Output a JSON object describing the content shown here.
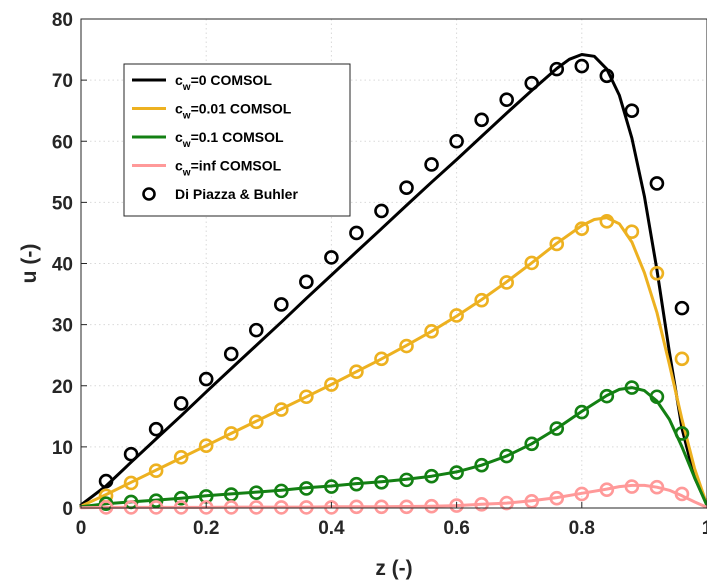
{
  "chart_data": {
    "type": "line",
    "title": "",
    "xlabel": "z (-)",
    "ylabel": "u (-)",
    "xlim": [
      0,
      1
    ],
    "ylim": [
      0,
      80
    ],
    "xticks": [
      0,
      0.2,
      0.4,
      0.6,
      0.8,
      1
    ],
    "xtick_labels": [
      "0",
      "0.2",
      "0.4",
      "0.6",
      "0.8",
      "1"
    ],
    "yticks": [
      0,
      10,
      20,
      30,
      40,
      50,
      60,
      70,
      80
    ],
    "ytick_labels": [
      "0",
      "10",
      "20",
      "30",
      "40",
      "50",
      "60",
      "70",
      "80"
    ],
    "grid": true,
    "legend_position": "top-left",
    "series": [
      {
        "name": "c_w=0 COMSOL",
        "label_main": "c",
        "label_sub": "w",
        "label_rest": "=0 COMSOL",
        "kind": "line",
        "color": "#000000",
        "x": [
          0,
          0.04,
          0.08,
          0.12,
          0.16,
          0.2,
          0.24,
          0.28,
          0.32,
          0.36,
          0.4,
          0.44,
          0.48,
          0.52,
          0.56,
          0.6,
          0.64,
          0.68,
          0.72,
          0.76,
          0.78,
          0.8,
          0.82,
          0.84,
          0.86,
          0.88,
          0.9,
          0.92,
          0.94,
          0.96,
          0.98,
          1.0
        ],
        "y": [
          0.5,
          3.6,
          7.5,
          11.3,
          15.1,
          19.0,
          22.8,
          26.6,
          30.4,
          34.3,
          38.1,
          41.9,
          45.7,
          49.5,
          53.3,
          57.0,
          60.8,
          64.6,
          68.3,
          71.9,
          73.4,
          74.2,
          73.9,
          71.8,
          67.5,
          60.5,
          51.0,
          39.0,
          25.5,
          13.0,
          5.0,
          0.5
        ]
      },
      {
        "name": "c_w=0.01 COMSOL",
        "label_main": "c",
        "label_sub": "w",
        "label_rest": "=0.01 COMSOL",
        "kind": "line",
        "color": "#edb120",
        "x": [
          0,
          0.04,
          0.08,
          0.12,
          0.16,
          0.2,
          0.24,
          0.28,
          0.32,
          0.36,
          0.4,
          0.44,
          0.48,
          0.52,
          0.56,
          0.6,
          0.64,
          0.68,
          0.72,
          0.76,
          0.8,
          0.82,
          0.84,
          0.86,
          0.88,
          0.9,
          0.92,
          0.94,
          0.96,
          0.98,
          1.0
        ],
        "y": [
          0.3,
          2.2,
          4.2,
          6.2,
          8.2,
          10.2,
          12.2,
          14.2,
          16.2,
          18.2,
          20.2,
          22.3,
          24.4,
          26.6,
          28.9,
          31.4,
          34.1,
          37.0,
          40.1,
          43.3,
          46.2,
          47.2,
          47.5,
          46.5,
          43.5,
          38.5,
          32.0,
          23.5,
          14.5,
          6.5,
          0.5
        ]
      },
      {
        "name": "c_w=0.1 COMSOL",
        "label_main": "c",
        "label_sub": "w",
        "label_rest": "=0.1 COMSOL",
        "kind": "line",
        "color": "#138013",
        "x": [
          0,
          0.04,
          0.08,
          0.12,
          0.16,
          0.2,
          0.24,
          0.28,
          0.32,
          0.36,
          0.4,
          0.44,
          0.48,
          0.52,
          0.56,
          0.6,
          0.64,
          0.68,
          0.72,
          0.76,
          0.8,
          0.84,
          0.86,
          0.88,
          0.9,
          0.92,
          0.94,
          0.96,
          0.98,
          1.0
        ],
        "y": [
          0.2,
          0.7,
          1.0,
          1.3,
          1.6,
          2.0,
          2.3,
          2.6,
          2.9,
          3.3,
          3.6,
          4.0,
          4.3,
          4.7,
          5.2,
          5.9,
          7.0,
          8.5,
          10.5,
          13.0,
          15.8,
          18.4,
          19.4,
          19.7,
          19.2,
          17.5,
          14.5,
          10.0,
          5.0,
          0.4
        ]
      },
      {
        "name": "c_w=inf COMSOL",
        "label_main": "c",
        "label_sub": "w",
        "label_rest": "=inf COMSOL",
        "kind": "line",
        "color": "#ff9999",
        "x": [
          0,
          0.04,
          0.08,
          0.12,
          0.16,
          0.2,
          0.24,
          0.28,
          0.32,
          0.36,
          0.4,
          0.44,
          0.48,
          0.52,
          0.56,
          0.6,
          0.64,
          0.68,
          0.72,
          0.76,
          0.8,
          0.84,
          0.86,
          0.88,
          0.9,
          0.92,
          0.94,
          0.96,
          0.98,
          1.0
        ],
        "y": [
          0.05,
          0.1,
          0.1,
          0.1,
          0.1,
          0.1,
          0.15,
          0.15,
          0.15,
          0.15,
          0.2,
          0.2,
          0.2,
          0.25,
          0.3,
          0.4,
          0.6,
          0.8,
          1.2,
          1.7,
          2.4,
          3.1,
          3.5,
          3.7,
          3.7,
          3.4,
          2.9,
          2.0,
          1.0,
          0.1
        ]
      },
      {
        "name": "Di Piazza & Buhler",
        "label_main": "Di Piazza & Buhler",
        "label_sub": "",
        "label_rest": "",
        "kind": "markers-multi",
        "color": "#000000",
        "groups": [
          {
            "color": "#000000",
            "x": [
              0.04,
              0.08,
              0.12,
              0.16,
              0.2,
              0.24,
              0.28,
              0.32,
              0.36,
              0.4,
              0.44,
              0.48,
              0.52,
              0.56,
              0.6,
              0.64,
              0.68,
              0.72,
              0.76,
              0.8,
              0.84,
              0.88,
              0.92,
              0.96
            ],
            "y": [
              4.4,
              8.8,
              12.9,
              17.1,
              21.1,
              25.2,
              29.1,
              33.3,
              37.0,
              41.0,
              45.0,
              48.6,
              52.4,
              56.2,
              60.0,
              63.5,
              66.8,
              69.5,
              71.8,
              72.3,
              70.7,
              65.0,
              53.1,
              32.7
            ]
          },
          {
            "color": "#edb120",
            "x": [
              0.04,
              0.08,
              0.12,
              0.16,
              0.2,
              0.24,
              0.28,
              0.32,
              0.36,
              0.4,
              0.44,
              0.48,
              0.52,
              0.56,
              0.6,
              0.64,
              0.68,
              0.72,
              0.76,
              0.8,
              0.84,
              0.88,
              0.92,
              0.96
            ],
            "y": [
              2.0,
              4.1,
              6.1,
              8.3,
              10.2,
              12.2,
              14.1,
              16.1,
              18.2,
              20.2,
              22.3,
              24.4,
              26.5,
              28.9,
              31.5,
              34.0,
              36.9,
              40.1,
              43.2,
              45.7,
              46.9,
              45.2,
              38.4,
              24.4
            ]
          },
          {
            "color": "#138013",
            "x": [
              0.04,
              0.08,
              0.12,
              0.16,
              0.2,
              0.24,
              0.28,
              0.32,
              0.36,
              0.4,
              0.44,
              0.48,
              0.52,
              0.56,
              0.6,
              0.64,
              0.68,
              0.72,
              0.76,
              0.8,
              0.84,
              0.88,
              0.92,
              0.96
            ],
            "y": [
              0.7,
              1.0,
              1.2,
              1.6,
              1.9,
              2.2,
              2.5,
              2.8,
              3.2,
              3.5,
              3.9,
              4.2,
              4.6,
              5.2,
              5.8,
              7.0,
              8.5,
              10.5,
              13.0,
              15.7,
              18.3,
              19.7,
              18.2,
              12.2
            ]
          },
          {
            "color": "#ff9999",
            "x": [
              0.04,
              0.08,
              0.12,
              0.16,
              0.2,
              0.24,
              0.28,
              0.32,
              0.36,
              0.4,
              0.44,
              0.48,
              0.52,
              0.56,
              0.6,
              0.64,
              0.68,
              0.72,
              0.76,
              0.8,
              0.84,
              0.88,
              0.92,
              0.96
            ],
            "y": [
              0.1,
              0.1,
              0.1,
              0.1,
              0.1,
              0.1,
              0.1,
              0.1,
              0.1,
              0.1,
              0.2,
              0.2,
              0.2,
              0.3,
              0.4,
              0.6,
              0.8,
              1.1,
              1.6,
              2.3,
              3.0,
              3.5,
              3.4,
              2.3
            ]
          }
        ]
      }
    ]
  }
}
